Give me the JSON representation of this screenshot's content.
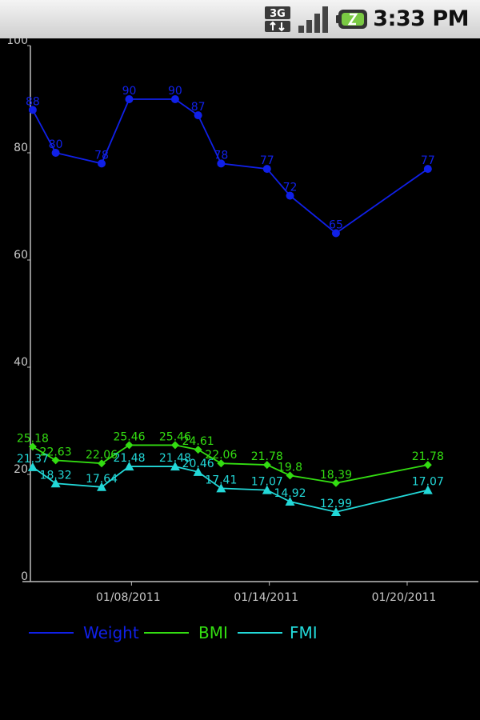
{
  "status_bar": {
    "network_type": "3G",
    "network_icon": "3g-data-icon",
    "signal_icon": "signal-strength-icon",
    "battery_icon": "battery-icon",
    "time": "3:33 PM"
  },
  "chart_data": {
    "type": "line",
    "title": "",
    "xlabel": "",
    "ylabel": "",
    "ylim": [
      0,
      100
    ],
    "y_ticks": [
      0,
      20,
      40,
      60,
      80,
      100
    ],
    "y_tick_labels": [
      "0",
      "20",
      "40",
      "60",
      "80",
      "100"
    ],
    "x_range": [
      -0.1,
      19.4
    ],
    "x_ticks": [
      4.3,
      10.3,
      16.3
    ],
    "x_tick_labels": [
      "01/08/2011",
      "01/14/2011",
      "01/20/2011"
    ],
    "x": [
      0,
      1,
      3,
      4.2,
      6.2,
      7.2,
      8.2,
      10.2,
      11.2,
      13.2,
      17.2
    ],
    "grid": false,
    "legend_position": "bottom-left",
    "series": [
      {
        "name": "Weight",
        "color": "#1020e8",
        "marker": "circle",
        "values": [
          88,
          80,
          78,
          90,
          90,
          87,
          78,
          77,
          72,
          65,
          77
        ],
        "labels": [
          "88",
          "80",
          "78",
          "90",
          "90",
          "87",
          "78",
          "77",
          "72",
          "65",
          "77"
        ]
      },
      {
        "name": "BMI",
        "color": "#33dd11",
        "marker": "diamond",
        "values": [
          25.18,
          22.63,
          22.06,
          25.46,
          25.46,
          24.61,
          22.06,
          21.78,
          19.8,
          18.39,
          21.78
        ],
        "labels": [
          "25.18",
          "22.63",
          "22.06",
          "25.46",
          "25.46",
          "24.61",
          "22.06",
          "21.78",
          "19.8",
          "18.39",
          "21.78"
        ]
      },
      {
        "name": "FMI",
        "color": "#22d8d8",
        "marker": "triangle",
        "values": [
          21.37,
          18.32,
          17.64,
          21.48,
          21.48,
          20.46,
          17.41,
          17.07,
          14.92,
          12.99,
          17.07
        ],
        "labels": [
          "21.37",
          "18.32",
          "17.64",
          "21.48",
          "21.48",
          "20.46",
          "17.41",
          "17.07",
          "14.92",
          "12.99",
          "17.07"
        ]
      }
    ]
  }
}
